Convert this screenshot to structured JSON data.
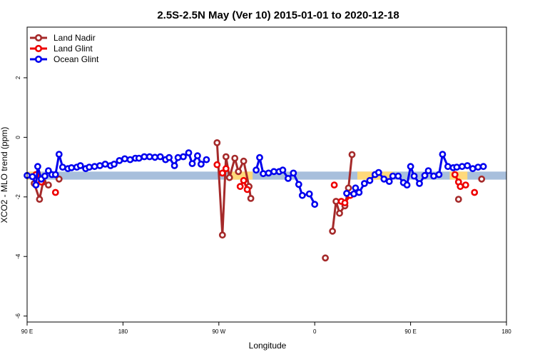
{
  "chart_data": {
    "type": "line",
    "title": "2.5S-2.5N May (Ver 10)   2015-01-01 to 2020-12-18",
    "xlabel": "Longitude",
    "ylabel": "XCO2 - MLO trend (ppm)",
    "xlim": [
      -90,
      180
    ],
    "ylim": [
      -6.2,
      3.7
    ],
    "x_ticks": [
      {
        "value": -90,
        "label": "90 E"
      },
      {
        "value": -36,
        "label": "180"
      },
      {
        "value": 18,
        "label": "90 W"
      },
      {
        "value": 72,
        "label": "0"
      },
      {
        "value": 126,
        "label": "90 E"
      },
      {
        "value": 180,
        "label": "180"
      }
    ],
    "y_ticks": [
      {
        "value": 2,
        "label": "2"
      },
      {
        "value": 0,
        "label": "0"
      },
      {
        "value": -2,
        "label": "-2"
      },
      {
        "value": -4,
        "label": "-4"
      },
      {
        "value": -6,
        "label": "-6"
      }
    ],
    "legend_position": "top-left",
    "bands": [
      {
        "name": "land",
        "color": "#ffd97a",
        "y_range": [
          -1.42,
          -1.15
        ],
        "x_ranges": [
          [
            -90,
            -82
          ],
          [
            23,
            37
          ],
          [
            96,
            116
          ],
          [
            148,
            158
          ]
        ]
      },
      {
        "name": "ocean",
        "color": "#a8bfdc",
        "y_range": [
          -1.42,
          -1.15
        ],
        "x_ranges": [
          [
            -90,
            180
          ]
        ]
      }
    ],
    "series": [
      {
        "name": "Land Nadir",
        "color": "#a52a2a",
        "segments": [
          [
            [
              -86,
              -1.55
            ],
            [
              -83,
              -2.08
            ],
            [
              -81,
              -1.5
            ],
            [
              -78,
              -1.6
            ]
          ],
          [
            [
              -72,
              -1.4
            ]
          ],
          [
            [
              17,
              -0.18
            ],
            [
              20,
              -3.28
            ],
            [
              22,
              -0.65
            ],
            [
              24,
              -1.35
            ],
            [
              27,
              -0.7
            ],
            [
              29,
              -1.15
            ],
            [
              32,
              -0.8
            ],
            [
              35,
              -1.65
            ],
            [
              36,
              -2.05
            ]
          ],
          [
            [
              78,
              -4.05
            ]
          ],
          [
            [
              82,
              -3.15
            ],
            [
              84,
              -2.15
            ],
            [
              86,
              -2.55
            ],
            [
              89,
              -2.3
            ],
            [
              91,
              -1.7
            ],
            [
              93,
              -0.58
            ]
          ],
          [
            [
              153,
              -2.08
            ]
          ],
          [
            [
              166,
              -1.4
            ]
          ]
        ]
      },
      {
        "name": "Land Glint",
        "color": "#ee0000",
        "segments": [
          [
            [
              -85,
              -1.25
            ],
            [
              -82,
              -1.5
            ]
          ],
          [
            [
              -74,
              -1.85
            ]
          ],
          [
            [
              17,
              -0.92
            ]
          ],
          [
            [
              20,
              -1.2
            ],
            [
              22,
              -1.05
            ]
          ],
          [
            [
              30,
              -1.65
            ],
            [
              32,
              -1.45
            ],
            [
              34,
              -1.75
            ]
          ],
          [
            [
              83,
              -1.6
            ]
          ],
          [
            [
              87,
              -2.15
            ],
            [
              89,
              -2.2
            ],
            [
              92,
              -1.95
            ]
          ],
          [
            [
              151,
              -1.25
            ],
            [
              153,
              -1.5
            ],
            [
              154,
              -1.65
            ],
            [
              157,
              -1.6
            ]
          ],
          [
            [
              162,
              -1.85
            ]
          ]
        ]
      },
      {
        "name": "Ocean Glint",
        "color": "#0000ee",
        "segments": [
          [
            [
              -90,
              -1.28
            ],
            [
              -87,
              -1.32
            ],
            [
              -85,
              -1.6
            ],
            [
              -84,
              -0.98
            ],
            [
              -82,
              -1.4
            ],
            [
              -80,
              -1.3
            ],
            [
              -78,
              -1.12
            ],
            [
              -76,
              -1.25
            ],
            [
              -74,
              -1.25
            ],
            [
              -72,
              -0.57
            ],
            [
              -70,
              -1.0
            ],
            [
              -67,
              -1.05
            ],
            [
              -65,
              -1.02
            ],
            [
              -62,
              -1.0
            ],
            [
              -60,
              -0.95
            ],
            [
              -57,
              -1.05
            ],
            [
              -55,
              -1.0
            ],
            [
              -52,
              -0.98
            ],
            [
              -49,
              -0.95
            ],
            [
              -46,
              -0.9
            ],
            [
              -43,
              -0.95
            ],
            [
              -41,
              -0.9
            ],
            [
              -38,
              -0.78
            ],
            [
              -35,
              -0.72
            ],
            [
              -32,
              -0.75
            ],
            [
              -29,
              -0.7
            ],
            [
              -27,
              -0.7
            ],
            [
              -24,
              -0.65
            ],
            [
              -21,
              -0.65
            ],
            [
              -18,
              -0.67
            ],
            [
              -15,
              -0.65
            ],
            [
              -12,
              -0.75
            ],
            [
              -10,
              -0.68
            ],
            [
              -7,
              -0.95
            ],
            [
              -5,
              -0.68
            ],
            [
              -2,
              -0.65
            ],
            [
              1,
              -0.52
            ],
            [
              3,
              -0.88
            ],
            [
              6,
              -0.62
            ],
            [
              8,
              -0.9
            ],
            [
              11,
              -0.75
            ]
          ],
          [
            [
              39,
              -1.1
            ],
            [
              41,
              -0.68
            ],
            [
              43,
              -1.22
            ],
            [
              46,
              -1.2
            ],
            [
              49,
              -1.15
            ],
            [
              52,
              -1.15
            ],
            [
              54,
              -1.1
            ],
            [
              57,
              -1.38
            ],
            [
              60,
              -1.2
            ],
            [
              63,
              -1.58
            ],
            [
              65,
              -1.95
            ],
            [
              69,
              -1.9
            ],
            [
              72,
              -2.25
            ]
          ],
          [
            [
              90,
              -1.88
            ],
            [
              94,
              -1.9
            ],
            [
              95,
              -1.7
            ],
            [
              97,
              -1.85
            ],
            [
              100,
              -1.55
            ],
            [
              103,
              -1.45
            ],
            [
              106,
              -1.25
            ],
            [
              108,
              -1.18
            ],
            [
              111,
              -1.4
            ],
            [
              114,
              -1.48
            ],
            [
              116,
              -1.3
            ],
            [
              119,
              -1.3
            ],
            [
              122,
              -1.52
            ],
            [
              124,
              -1.6
            ],
            [
              126,
              -0.98
            ],
            [
              128,
              -1.3
            ],
            [
              131,
              -1.55
            ],
            [
              134,
              -1.28
            ],
            [
              136,
              -1.12
            ],
            [
              139,
              -1.3
            ],
            [
              142,
              -1.25
            ],
            [
              144,
              -0.57
            ],
            [
              147,
              -0.98
            ],
            [
              150,
              -1.02
            ],
            [
              152,
              -1.0
            ],
            [
              155,
              -0.98
            ],
            [
              158,
              -0.95
            ],
            [
              161,
              -1.05
            ],
            [
              164,
              -1.0
            ],
            [
              167,
              -0.98
            ]
          ]
        ]
      }
    ]
  }
}
